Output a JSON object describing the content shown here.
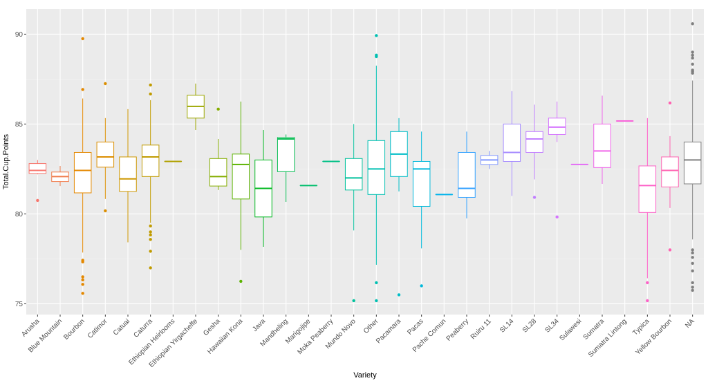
{
  "chart_data": {
    "type": "boxplot",
    "title": "",
    "xlabel": "Variety",
    "ylabel": "Total.Cup.Points",
    "ylim": [
      74.4,
      91.4
    ],
    "yticks": [
      75,
      80,
      85,
      90
    ],
    "grid": true,
    "legend": "none",
    "categories": [
      "Arusha",
      "Blue Mountain",
      "Bourbon",
      "Catimor",
      "Catuai",
      "Caturra",
      "Ethiopian Heirlooms",
      "Ethiopian Yirgacheffe",
      "Gesha",
      "Hawaiian Kona",
      "Java",
      "Mandheling",
      "Marigojipe",
      "Moka Peaberry",
      "Mundo Novo",
      "Other",
      "Pacamara",
      "Pacas",
      "Pache Comun",
      "Peaberry",
      "Ruiru 11",
      "SL14",
      "SL28",
      "SL34",
      "Sulawesi",
      "Sumatra",
      "Sumatra Lintong",
      "Typica",
      "Yellow Bourbon",
      "NA"
    ],
    "series": [
      {
        "name": "Arusha",
        "color": "#F8766D",
        "whislo": 82.2,
        "q1": 82.25,
        "med": 82.42,
        "q3": 82.8,
        "whishi": 83.0,
        "outliers": [
          80.75
        ]
      },
      {
        "name": "Blue Mountain",
        "color": "#F07E4E",
        "whislo": 81.55,
        "q1": 81.8,
        "med": 82.08,
        "q3": 82.33,
        "whishi": 82.67,
        "outliers": []
      },
      {
        "name": "Bourbon",
        "color": "#E48800",
        "whislo": 77.85,
        "q1": 81.17,
        "med": 82.42,
        "q3": 83.42,
        "whishi": 86.42,
        "outliers": [
          89.75,
          86.92,
          77.42,
          77.33,
          76.5,
          76.33,
          76.08,
          75.58
        ]
      },
      {
        "name": "Catimor",
        "color": "#DB8E00",
        "whislo": 80.83,
        "q1": 82.6,
        "med": 83.17,
        "q3": 84.0,
        "whishi": 85.33,
        "outliers": [
          87.25,
          80.17
        ]
      },
      {
        "name": "Catuai",
        "color": "#CE9700",
        "whislo": 78.42,
        "q1": 81.25,
        "med": 81.95,
        "q3": 83.17,
        "whishi": 85.83,
        "outliers": []
      },
      {
        "name": "Caturra",
        "color": "#C09B00",
        "whislo": 79.5,
        "q1": 82.08,
        "med": 83.17,
        "q3": 83.83,
        "whishi": 86.33,
        "outliers": [
          87.17,
          86.67,
          79.33,
          79.0,
          78.83,
          78.58,
          77.92,
          77.0
        ]
      },
      {
        "name": "Ethiopian Heirlooms",
        "color": "#B0A100",
        "whislo": 82.92,
        "q1": 82.92,
        "med": 82.92,
        "q3": 82.92,
        "whishi": 82.92,
        "outliers": []
      },
      {
        "name": "Ethiopian Yirgacheffe",
        "color": "#9DA700",
        "whislo": 84.67,
        "q1": 85.33,
        "med": 85.98,
        "q3": 86.6,
        "whishi": 87.25,
        "outliers": []
      },
      {
        "name": "Gesha",
        "color": "#85AD00",
        "whislo": 81.33,
        "q1": 81.55,
        "med": 82.08,
        "q3": 83.08,
        "whishi": 84.17,
        "outliers": [
          85.83
        ]
      },
      {
        "name": "Hawaiian Kona",
        "color": "#5BB300",
        "whislo": 78.0,
        "q1": 80.83,
        "med": 82.75,
        "q3": 83.33,
        "whishi": 86.25,
        "outliers": [
          76.25
        ]
      },
      {
        "name": "Java",
        "color": "#00B81F",
        "whislo": 78.17,
        "q1": 79.83,
        "med": 81.42,
        "q3": 83.0,
        "whishi": 84.67,
        "outliers": []
      },
      {
        "name": "Mandheling",
        "color": "#00BB4E",
        "whislo": 80.67,
        "q1": 82.35,
        "med": 84.17,
        "q3": 84.25,
        "whishi": 84.42,
        "outliers": []
      },
      {
        "name": "Marigojipe",
        "color": "#00BE6C",
        "whislo": 81.58,
        "q1": 81.58,
        "med": 81.58,
        "q3": 81.58,
        "whishi": 81.58,
        "outliers": []
      },
      {
        "name": "Moka Peaberry",
        "color": "#00C086",
        "whislo": 82.92,
        "q1": 82.92,
        "med": 82.92,
        "q3": 82.92,
        "whishi": 82.92,
        "outliers": []
      },
      {
        "name": "Mundo Novo",
        "color": "#00C19C",
        "whislo": 79.08,
        "q1": 81.33,
        "med": 82.0,
        "q3": 83.08,
        "whishi": 85.0,
        "outliers": [
          75.17
        ]
      },
      {
        "name": "Other",
        "color": "#00C0B2",
        "whislo": 77.17,
        "q1": 81.08,
        "med": 82.5,
        "q3": 84.08,
        "whishi": 88.25,
        "outliers": [
          89.92,
          88.83,
          88.75,
          76.17,
          75.17
        ]
      },
      {
        "name": "Pacamara",
        "color": "#00BDC7",
        "whislo": 81.25,
        "q1": 82.08,
        "med": 83.33,
        "q3": 84.58,
        "whishi": 85.33,
        "outliers": [
          75.5
        ]
      },
      {
        "name": "Pacas",
        "color": "#00B8DA",
        "whislo": 78.08,
        "q1": 80.42,
        "med": 82.5,
        "q3": 82.92,
        "whishi": 84.58,
        "outliers": [
          76.0
        ]
      },
      {
        "name": "Pache Comun",
        "color": "#00B2EB",
        "whislo": 81.08,
        "q1": 81.08,
        "med": 81.08,
        "q3": 81.08,
        "whishi": 81.08,
        "outliers": []
      },
      {
        "name": "Peaberry",
        "color": "#35A2FF",
        "whislo": 79.75,
        "q1": 80.92,
        "med": 81.42,
        "q3": 83.42,
        "whishi": 84.58,
        "outliers": []
      },
      {
        "name": "Ruiru 11",
        "color": "#7F96FF",
        "whislo": 82.5,
        "q1": 82.75,
        "med": 83.0,
        "q3": 83.25,
        "whishi": 83.5,
        "outliers": []
      },
      {
        "name": "SL14",
        "color": "#A58AFF",
        "whislo": 81.0,
        "q1": 82.92,
        "med": 83.42,
        "q3": 85.0,
        "whishi": 86.83,
        "outliers": []
      },
      {
        "name": "SL28",
        "color": "#C17FFF",
        "whislo": 81.92,
        "q1": 83.42,
        "med": 84.17,
        "q3": 84.58,
        "whishi": 86.08,
        "outliers": [
          80.92
        ]
      },
      {
        "name": "SL34",
        "color": "#D575FE",
        "whislo": 84.0,
        "q1": 84.42,
        "med": 84.83,
        "q3": 85.33,
        "whishi": 86.25,
        "outliers": [
          79.83
        ]
      },
      {
        "name": "Sulawesi",
        "color": "#E46CF6",
        "whislo": 82.75,
        "q1": 82.75,
        "med": 82.75,
        "q3": 82.75,
        "whishi": 82.75,
        "outliers": []
      },
      {
        "name": "Sumatra",
        "color": "#F066EA",
        "whislo": 81.67,
        "q1": 82.58,
        "med": 83.5,
        "q3": 85.0,
        "whishi": 86.58,
        "outliers": []
      },
      {
        "name": "Sumatra Lintong",
        "color": "#F863DA",
        "whislo": 85.17,
        "q1": 85.17,
        "med": 85.17,
        "q3": 85.17,
        "whishi": 85.17,
        "outliers": []
      },
      {
        "name": "Typica",
        "color": "#FD61C7",
        "whislo": 76.42,
        "q1": 80.08,
        "med": 81.58,
        "q3": 82.67,
        "whishi": 85.33,
        "outliers": [
          76.17,
          75.17
        ]
      },
      {
        "name": "Yellow Bourbon",
        "color": "#FF63B1",
        "whislo": 80.33,
        "q1": 81.5,
        "med": 82.42,
        "q3": 83.17,
        "whishi": 84.33,
        "outliers": [
          86.17,
          78.0
        ]
      },
      {
        "name": "NA",
        "color": "#7F7F7F",
        "whislo": 78.58,
        "q1": 81.67,
        "med": 83.0,
        "q3": 84.0,
        "whishi": 87.42,
        "outliers": [
          90.58,
          89.0,
          88.83,
          88.67,
          88.33,
          88.0,
          87.92,
          87.83,
          78.0,
          77.83,
          77.58,
          77.25,
          76.83,
          76.17,
          75.92,
          75.75
        ]
      }
    ]
  }
}
